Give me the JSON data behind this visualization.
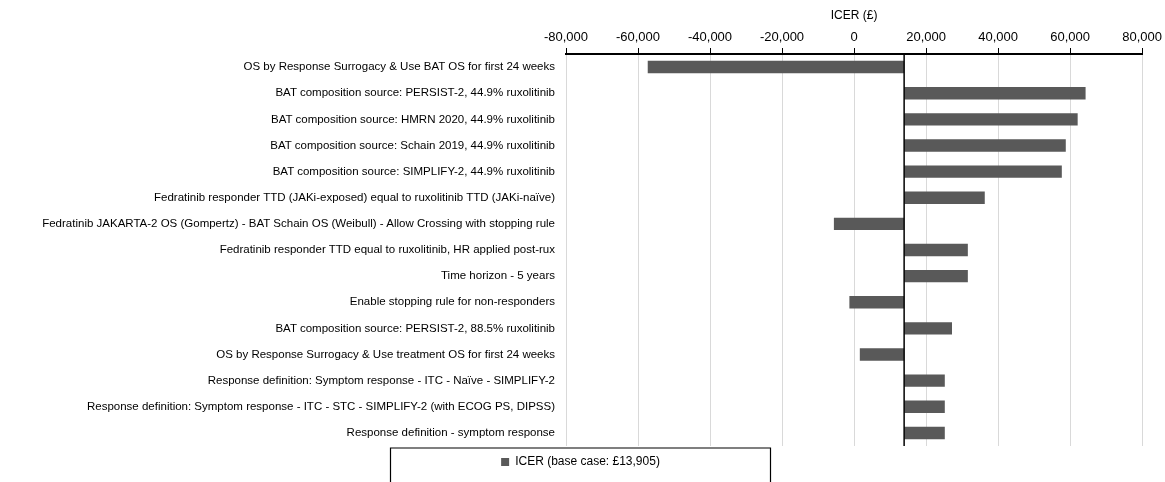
{
  "chart_data": {
    "type": "bar",
    "orientation": "horizontal",
    "xlabel": "ICER (£)",
    "categories": [
      "OS by Response Surrogacy & Use BAT OS for first 24 weeks",
      "BAT composition source: PERSIST-2, 44.9% ruxolitinib",
      "BAT composition source: HMRN 2020, 44.9% ruxolitinib",
      "BAT composition source: Schain 2019, 44.9% ruxolitinib",
      "BAT composition source: SIMPLIFY-2, 44.9% ruxolitinib",
      "Fedratinib responder TTD (JAKi-exposed) equal to ruxolitinib TTD (JAKi-naïve)",
      "Fedratinib JAKARTA-2 OS (Gompertz) - BAT Schain OS (Weibull) - Allow Crossing with stopping rule",
      "Fedratinib responder TTD equal to ruxolitinib, HR applied post-rux",
      "Time horizon - 5 years",
      "Enable stopping rule for non-responders",
      "BAT composition source: PERSIST-2, 88.5% ruxolitinib",
      "OS by Response Surrogacy & Use treatment OS for first 24 weeks",
      "Response definition: Symptom response - ITC - Naïve - SIMPLIFY-2",
      "Response definition: Symptom response - ITC - STC - SIMPLIFY-2 (with ECOG PS, DIPSS)",
      "Response definition - symptom response"
    ],
    "series": [
      {
        "name": "ICER (base case: £13,905)",
        "color": "#595959",
        "base": [
          13905,
          13905,
          13905,
          13905,
          13905,
          13905,
          13905,
          13905,
          13905,
          13905,
          13905,
          13905,
          13905,
          13905,
          13905
        ],
        "values": [
          -71205,
          50395,
          48195,
          44895,
          43795,
          22395,
          -19505,
          17695,
          17695,
          -15205,
          13295,
          -12305,
          11295,
          11295,
          11295
        ]
      }
    ],
    "xlim": [
      -80000,
      80000
    ],
    "xticks": [
      {
        "value": -80000,
        "label": "-80,000"
      },
      {
        "value": -60000,
        "label": "-60,000"
      },
      {
        "value": -40000,
        "label": "-40,000"
      },
      {
        "value": -20000,
        "label": "-20,000"
      },
      0,
      {
        "value": 20000,
        "label": "20,000"
      },
      {
        "value": 40000,
        "label": "40,000"
      },
      {
        "value": 60000,
        "label": "60,000"
      },
      {
        "value": 80000,
        "label": "80,000"
      }
    ],
    "ref_lines": [
      {
        "axis": "x",
        "value": 13905,
        "color": "#000000"
      }
    ],
    "grid": "x",
    "legend": "bottom"
  }
}
